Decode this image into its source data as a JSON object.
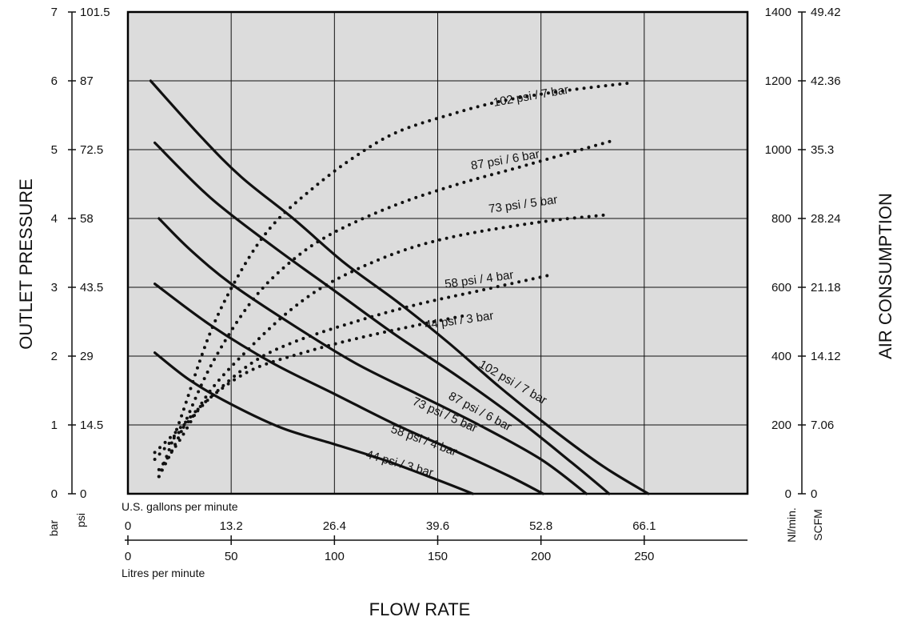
{
  "chart_data": {
    "type": "line",
    "title": "",
    "x_axis": {
      "title": "FLOW RATE",
      "primary": {
        "label": "Litres per minute",
        "ticks": [
          "0",
          "50",
          "100",
          "150",
          "200",
          "250"
        ],
        "range": [
          0,
          300
        ]
      },
      "secondary": {
        "label": "U.S. gallons per minute",
        "ticks": [
          "0",
          "13.2",
          "26.4",
          "39.6",
          "52.8",
          "66.1"
        ]
      }
    },
    "y_left": {
      "title": "OUTLET PRESSURE",
      "bar": {
        "unit": "bar",
        "ticks": [
          "0",
          "1",
          "2",
          "3",
          "4",
          "5",
          "6",
          "7"
        ],
        "range": [
          0,
          7
        ]
      },
      "psi": {
        "unit": "psi",
        "ticks": [
          "0",
          "14.5",
          "29",
          "43.5",
          "58",
          "72.5",
          "87",
          "101.5"
        ]
      }
    },
    "y_right": {
      "title": "AIR CONSUMPTION",
      "nl": {
        "unit": "Nl/min.",
        "ticks": [
          "0",
          "200",
          "400",
          "600",
          "800",
          "1000",
          "1200",
          "1400"
        ],
        "range": [
          0,
          1400
        ]
      },
      "scfm": {
        "unit": "SCFM",
        "ticks": [
          "0",
          "7.06",
          "14.12",
          "21.18",
          "28.24",
          "35.3",
          "42.36",
          "49.42"
        ]
      }
    },
    "grid": true,
    "pressure_series": [
      {
        "name": "102 psi / 7 bar",
        "axis": "bar",
        "style": "solid",
        "points": [
          [
            11,
            6.0
          ],
          [
            35,
            5.2
          ],
          [
            55,
            4.6
          ],
          [
            80,
            4.0
          ],
          [
            105,
            3.35
          ],
          [
            130,
            2.8
          ],
          [
            155,
            2.2
          ],
          [
            180,
            1.55
          ],
          [
            205,
            0.95
          ],
          [
            230,
            0.4
          ],
          [
            252,
            0.0
          ]
        ]
      },
      {
        "name": "87 psi / 6 bar",
        "axis": "bar",
        "style": "solid",
        "points": [
          [
            13,
            5.1
          ],
          [
            40,
            4.3
          ],
          [
            70,
            3.6
          ],
          [
            100,
            2.95
          ],
          [
            130,
            2.3
          ],
          [
            160,
            1.7
          ],
          [
            190,
            1.05
          ],
          [
            215,
            0.45
          ],
          [
            233,
            0.0
          ]
        ]
      },
      {
        "name": "73 psi / 5 bar",
        "axis": "bar",
        "style": "solid",
        "points": [
          [
            15,
            4.0
          ],
          [
            30,
            3.55
          ],
          [
            50,
            3.05
          ],
          [
            80,
            2.45
          ],
          [
            110,
            1.9
          ],
          [
            140,
            1.45
          ],
          [
            170,
            1.0
          ],
          [
            200,
            0.5
          ],
          [
            222,
            0.0
          ]
        ]
      },
      {
        "name": "58 psi / 4 bar",
        "axis": "bar",
        "style": "solid",
        "points": [
          [
            13,
            3.05
          ],
          [
            40,
            2.45
          ],
          [
            70,
            1.9
          ],
          [
            100,
            1.45
          ],
          [
            130,
            1.0
          ],
          [
            160,
            0.6
          ],
          [
            185,
            0.25
          ],
          [
            201,
            0.0
          ]
        ]
      },
      {
        "name": "44 psi / 3 bar",
        "axis": "bar",
        "style": "solid",
        "points": [
          [
            13,
            2.05
          ],
          [
            30,
            1.65
          ],
          [
            50,
            1.3
          ],
          [
            75,
            0.95
          ],
          [
            100,
            0.72
          ],
          [
            125,
            0.48
          ],
          [
            150,
            0.2
          ],
          [
            167,
            0.0
          ]
        ]
      }
    ],
    "air_series": [
      {
        "name": "102 psi / 7 bar",
        "axis": "nl",
        "style": "dotted",
        "points": [
          [
            15,
            50
          ],
          [
            25,
            210
          ],
          [
            40,
            470
          ],
          [
            55,
            650
          ],
          [
            70,
            780
          ],
          [
            90,
            890
          ],
          [
            110,
            980
          ],
          [
            130,
            1050
          ],
          [
            155,
            1100
          ],
          [
            180,
            1140
          ],
          [
            210,
            1170
          ],
          [
            245,
            1195
          ]
        ]
      },
      {
        "name": "87 psi / 6 bar",
        "axis": "nl",
        "style": "dotted",
        "points": [
          [
            15,
            50
          ],
          [
            25,
            170
          ],
          [
            40,
            370
          ],
          [
            60,
            560
          ],
          [
            80,
            680
          ],
          [
            100,
            760
          ],
          [
            130,
            840
          ],
          [
            160,
            900
          ],
          [
            190,
            950
          ],
          [
            234,
            1025
          ]
        ]
      },
      {
        "name": "73 psi / 5 bar",
        "axis": "nl",
        "style": "dotted",
        "points": [
          [
            15,
            70
          ],
          [
            25,
            155
          ],
          [
            40,
            300
          ],
          [
            60,
            430
          ],
          [
            80,
            540
          ],
          [
            100,
            620
          ],
          [
            130,
            700
          ],
          [
            160,
            750
          ],
          [
            200,
            790
          ],
          [
            231,
            810
          ]
        ]
      },
      {
        "name": "58 psi / 4 bar",
        "axis": "nl",
        "style": "dotted",
        "points": [
          [
            13,
            100
          ],
          [
            25,
            180
          ],
          [
            40,
            280
          ],
          [
            60,
            380
          ],
          [
            80,
            440
          ],
          [
            110,
            500
          ],
          [
            140,
            550
          ],
          [
            170,
            590
          ],
          [
            204,
            635
          ]
        ]
      },
      {
        "name": "44 psi / 3 bar",
        "axis": "nl",
        "style": "dotted",
        "points": [
          [
            13,
            120
          ],
          [
            25,
            190
          ],
          [
            40,
            280
          ],
          [
            60,
            360
          ],
          [
            85,
            410
          ],
          [
            110,
            450
          ],
          [
            140,
            490
          ],
          [
            165,
            520
          ]
        ]
      }
    ],
    "labels": {
      "pressure": [
        "102 psi / 7 bar",
        "87 psi / 6 bar",
        "73 psi / 5 bar",
        "58 psi / 4 bar",
        "44 psi / 3 bar"
      ],
      "air": [
        "102 psi / 7 bar",
        "87 psi / 6 bar",
        "73 psi / 5 bar",
        "58 psi / 4 bar",
        "44 psi / 3 bar"
      ]
    }
  }
}
